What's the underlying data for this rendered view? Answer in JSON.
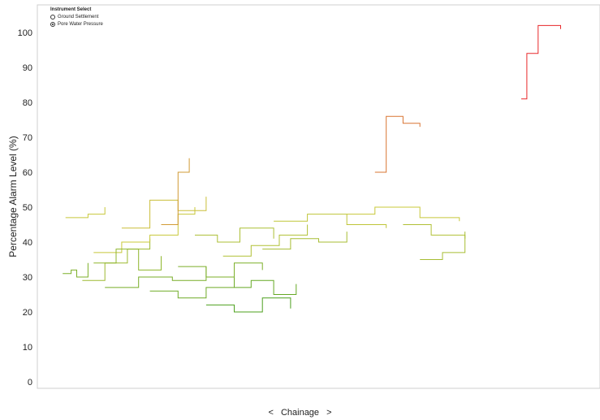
{
  "instrument_select": {
    "title": "Instrument Select",
    "options": [
      {
        "label": "Ground Settlement",
        "selected": false
      },
      {
        "label": "Pore Water Pressure",
        "selected": true
      }
    ]
  },
  "nav": {
    "left_arrow": "<",
    "right_arrow": ">",
    "label": "Chainage"
  },
  "chart_data": {
    "type": "line",
    "xlabel": "Chainage",
    "ylabel": "Percentage Alarm Level (%)",
    "ylim": [
      0,
      100
    ],
    "yticks": [
      0,
      10,
      20,
      30,
      40,
      50,
      60,
      70,
      80,
      90,
      100
    ],
    "grid": false,
    "color_scale": {
      "low": "#3a9a1a",
      "mid": "#c8c83a",
      "high": "#e8282a"
    },
    "series": [
      {
        "x": [
          0.045,
          0.06,
          0.07,
          0.09
        ],
        "y": [
          31,
          32,
          30,
          34
        ]
      },
      {
        "x": [
          0.05,
          0.09,
          0.12
        ],
        "y": [
          47,
          48,
          50
        ]
      },
      {
        "x": [
          0.08,
          0.12,
          0.16,
          0.2
        ],
        "y": [
          29,
          34,
          38,
          41
        ]
      },
      {
        "x": [
          0.1,
          0.15,
          0.2,
          0.25,
          0.28
        ],
        "y": [
          37,
          40,
          42,
          48,
          50
        ]
      },
      {
        "x": [
          0.1,
          0.14,
          0.18,
          0.22
        ],
        "y": [
          34,
          38,
          32,
          36
        ]
      },
      {
        "x": [
          0.12,
          0.18,
          0.24,
          0.3
        ],
        "y": [
          27,
          30,
          29,
          33
        ]
      },
      {
        "x": [
          0.15,
          0.2,
          0.25,
          0.3
        ],
        "y": [
          44,
          52,
          49,
          53
        ]
      },
      {
        "x": [
          0.2,
          0.25,
          0.3,
          0.35
        ],
        "y": [
          26,
          24,
          27,
          31
        ]
      },
      {
        "x": [
          0.22,
          0.25,
          0.27
        ],
        "y": [
          45,
          60,
          64
        ]
      },
      {
        "x": [
          0.25,
          0.3,
          0.35,
          0.4
        ],
        "y": [
          33,
          30,
          34,
          32
        ]
      },
      {
        "x": [
          0.28,
          0.32,
          0.36,
          0.42
        ],
        "y": [
          42,
          40,
          44,
          41
        ]
      },
      {
        "x": [
          0.3,
          0.35,
          0.4,
          0.45
        ],
        "y": [
          22,
          20,
          24,
          21
        ]
      },
      {
        "x": [
          0.33,
          0.38,
          0.43,
          0.48
        ],
        "y": [
          36,
          39,
          42,
          45
        ]
      },
      {
        "x": [
          0.35,
          0.38,
          0.42,
          0.46
        ],
        "y": [
          27,
          29,
          25,
          28
        ]
      },
      {
        "x": [
          0.4,
          0.45,
          0.5,
          0.55
        ],
        "y": [
          38,
          41,
          40,
          43
        ]
      },
      {
        "x": [
          0.42,
          0.48,
          0.55,
          0.62
        ],
        "y": [
          46,
          48,
          45,
          44
        ]
      },
      {
        "x": [
          0.55,
          0.6,
          0.68,
          0.75
        ],
        "y": [
          48,
          50,
          47,
          46
        ]
      },
      {
        "x": [
          0.6,
          0.62,
          0.65,
          0.68
        ],
        "y": [
          60,
          76,
          74,
          73
        ]
      },
      {
        "x": [
          0.65,
          0.7,
          0.76
        ],
        "y": [
          45,
          42,
          41
        ]
      },
      {
        "x": [
          0.68,
          0.72,
          0.76
        ],
        "y": [
          35,
          37,
          43
        ]
      },
      {
        "x": [
          0.86,
          0.87,
          0.89,
          0.93
        ],
        "y": [
          81,
          94,
          102,
          101
        ]
      }
    ]
  }
}
